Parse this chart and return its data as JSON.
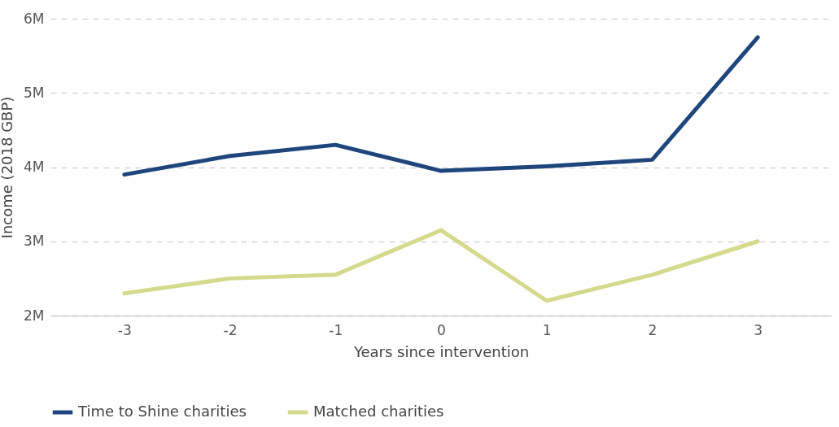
{
  "chart_data": {
    "type": "line",
    "xlabel": "Years since intervention",
    "ylabel": "Income (2018 GBP)",
    "categories": [
      "-3",
      "-2",
      "-1",
      "0",
      "1",
      "2",
      "3"
    ],
    "series": [
      {
        "name": "Time to Shine charities",
        "color": "#1f467c",
        "values": [
          3900000,
          4150000,
          4300000,
          3950000,
          4010000,
          4100000,
          5750000
        ]
      },
      {
        "name": "Matched charities",
        "color": "#d5d98b",
        "values": [
          2300000,
          2500000,
          2550000,
          3150000,
          2200000,
          2550000,
          3000000
        ]
      }
    ],
    "ylim": [
      2000000,
      6000000
    ],
    "yticks": [
      {
        "value": 2000000,
        "label": "2M"
      },
      {
        "value": 3000000,
        "label": "3M"
      },
      {
        "value": 4000000,
        "label": "4M"
      },
      {
        "value": 5000000,
        "label": "5M"
      },
      {
        "value": 6000000,
        "label": "6M"
      }
    ],
    "grid": "y",
    "legend": "bottom"
  }
}
